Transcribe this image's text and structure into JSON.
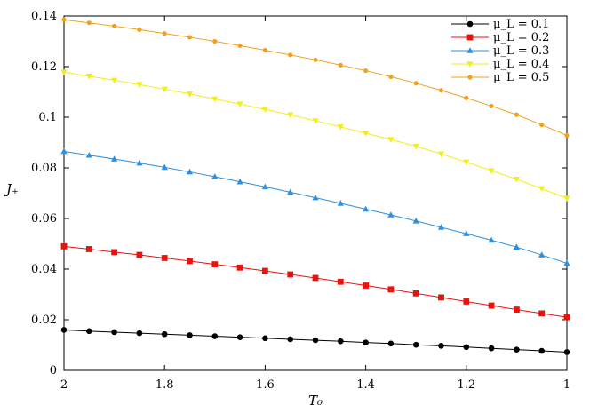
{
  "chart_data": {
    "type": "line",
    "xlabel": "T₀",
    "ylabel": "J₊",
    "xlim": [
      2,
      1
    ],
    "ylim": [
      0,
      0.14
    ],
    "x_reversed": true,
    "grid": false,
    "legend_position": "top-right",
    "x_ticks": [
      {
        "value": 2,
        "label": "2"
      },
      {
        "value": 1.8,
        "label": "1.8"
      },
      {
        "value": 1.6,
        "label": "1.6"
      },
      {
        "value": 1.4,
        "label": "1.4"
      },
      {
        "value": 1.2,
        "label": "1.2"
      },
      {
        "value": 1,
        "label": "1"
      }
    ],
    "y_ticks": [
      {
        "value": 0,
        "label": "0"
      },
      {
        "value": 0.02,
        "label": "0.02"
      },
      {
        "value": 0.04,
        "label": "0.04"
      },
      {
        "value": 0.06,
        "label": "0.06"
      },
      {
        "value": 0.08,
        "label": "0.08"
      },
      {
        "value": 0.1,
        "label": "0.1"
      },
      {
        "value": 0.12,
        "label": "0.12"
      },
      {
        "value": 0.14,
        "label": "0.14"
      }
    ],
    "x": [
      2.0,
      1.95,
      1.9,
      1.85,
      1.8,
      1.75,
      1.7,
      1.65,
      1.6,
      1.55,
      1.5,
      1.45,
      1.4,
      1.35,
      1.3,
      1.25,
      1.2,
      1.15,
      1.1,
      1.05,
      1.0
    ],
    "series": [
      {
        "name": "μ_L = 0.1",
        "color": "#000000",
        "marker": "circle",
        "values": [
          0.016,
          0.0155,
          0.0151,
          0.0147,
          0.0143,
          0.0139,
          0.0135,
          0.0131,
          0.0127,
          0.0123,
          0.0119,
          0.0115,
          0.011,
          0.0106,
          0.0101,
          0.0097,
          0.0092,
          0.0087,
          0.0082,
          0.0077,
          0.0072
        ]
      },
      {
        "name": "μ_L = 0.2",
        "color": "#e8130c",
        "marker": "square",
        "values": [
          0.049,
          0.0479,
          0.0467,
          0.0456,
          0.0444,
          0.0432,
          0.0419,
          0.0406,
          0.0393,
          0.0379,
          0.0365,
          0.035,
          0.0335,
          0.032,
          0.0304,
          0.0288,
          0.0272,
          0.0256,
          0.024,
          0.0225,
          0.021
        ]
      },
      {
        "name": "μ_L = 0.3",
        "color": "#2b90e0",
        "marker": "triangle",
        "values": [
          0.0865,
          0.085,
          0.0835,
          0.0819,
          0.0802,
          0.0784,
          0.0765,
          0.0745,
          0.0725,
          0.0704,
          0.0682,
          0.066,
          0.0637,
          0.0614,
          0.059,
          0.0565,
          0.054,
          0.0514,
          0.0487,
          0.0456,
          0.0423
        ]
      },
      {
        "name": "μ_L = 0.4",
        "color": "#f0ee1c",
        "marker": "triangle-down",
        "values": [
          0.1178,
          0.1162,
          0.1146,
          0.1129,
          0.1111,
          0.1092,
          0.1072,
          0.1052,
          0.1031,
          0.1009,
          0.0986,
          0.0962,
          0.0937,
          0.0912,
          0.0885,
          0.0855,
          0.0823,
          0.0789,
          0.0755,
          0.0718,
          0.068
        ]
      },
      {
        "name": "μ_L = 0.5",
        "color": "#f0a21e",
        "marker": "circle-small",
        "values": [
          0.1385,
          0.1373,
          0.136,
          0.1346,
          0.1331,
          0.1316,
          0.13,
          0.1283,
          0.1265,
          0.1246,
          0.1227,
          0.1206,
          0.1184,
          0.116,
          0.1134,
          0.1106,
          0.1076,
          0.1044,
          0.101,
          0.097,
          0.0928
        ]
      }
    ]
  }
}
